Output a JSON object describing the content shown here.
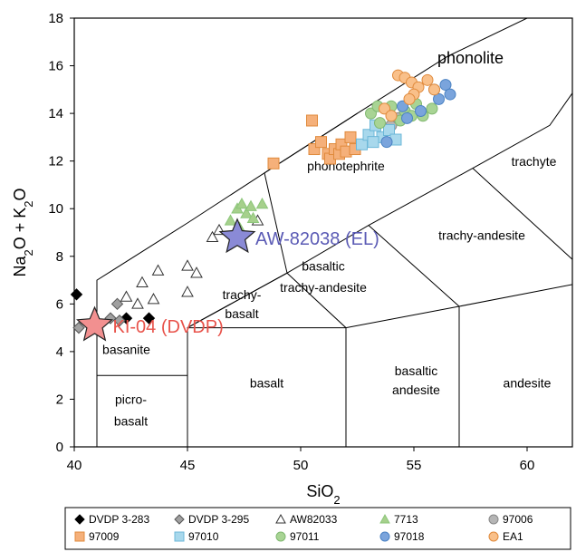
{
  "chart_data": {
    "type": "scatter",
    "xlabel": "SiO2",
    "ylabel": "Na2O + K2O",
    "xlim": [
      40,
      62
    ],
    "ylim": [
      0,
      18
    ],
    "xticks": [
      40,
      45,
      50,
      55,
      60
    ],
    "yticks": [
      0,
      2,
      4,
      6,
      8,
      10,
      12,
      14,
      16,
      18
    ],
    "grid": false,
    "legend_placement": "bottom",
    "fields": [
      {
        "label": "phonolite",
        "x": 57.5,
        "y": 16.1
      },
      {
        "label": "phonotephrite",
        "x": 52.0,
        "y": 11.6
      },
      {
        "label": "trachyte",
        "x": 60.3,
        "y": 11.8
      },
      {
        "label": "trachy-andesite",
        "x": 58.0,
        "y": 8.7
      },
      {
        "label": "basaltic",
        "x": 51.0,
        "y": 7.4
      },
      {
        "label": "trachy-andesite",
        "x": 51.0,
        "y": 6.5
      },
      {
        "label": "trachy-",
        "x": 47.4,
        "y": 6.2
      },
      {
        "label": "basalt",
        "x": 47.4,
        "y": 5.4
      },
      {
        "label": "basanite",
        "x": 42.3,
        "y": 3.9
      },
      {
        "label": "basalt",
        "x": 48.5,
        "y": 2.5
      },
      {
        "label": "basaltic",
        "x": 55.1,
        "y": 3.0
      },
      {
        "label": "andesite",
        "x": 55.1,
        "y": 2.2
      },
      {
        "label": "andesite",
        "x": 60.0,
        "y": 2.5
      },
      {
        "label": "picro-",
        "x": 42.5,
        "y": 1.8
      },
      {
        "label": "basalt",
        "x": 42.5,
        "y": 0.9
      }
    ],
    "annotations": [
      {
        "label": "AW-82038 (EL)",
        "x": 47.2,
        "y": 8.8,
        "color": "#5b5bb5"
      },
      {
        "label": "KI-04 (DVDP)",
        "x": 40.9,
        "y": 5.1,
        "color": "#e8534b"
      }
    ],
    "series": [
      {
        "name": "DVDP 3-283",
        "marker": "diamond",
        "color": "#000000",
        "fill": "#000000",
        "points": [
          [
            40.1,
            6.4
          ],
          [
            42.3,
            5.4
          ],
          [
            43.3,
            5.4
          ]
        ]
      },
      {
        "name": "DVDP 3-295",
        "marker": "diamond",
        "color": "#555555",
        "fill": "#a0a0a0",
        "points": [
          [
            40.2,
            5.0
          ],
          [
            41.6,
            5.4
          ],
          [
            41.9,
            6.0
          ],
          [
            42.0,
            5.3
          ]
        ]
      },
      {
        "name": "AW82033",
        "marker": "triangle-open",
        "color": "#333333",
        "fill": "#ffffff",
        "points": [
          [
            42.3,
            6.3
          ],
          [
            42.8,
            6.0
          ],
          [
            43.0,
            6.9
          ],
          [
            43.5,
            6.2
          ],
          [
            43.7,
            7.4
          ],
          [
            45.0,
            7.6
          ],
          [
            45.0,
            6.5
          ],
          [
            45.4,
            7.3
          ],
          [
            46.1,
            8.8
          ],
          [
            46.4,
            9.1
          ],
          [
            48.1,
            9.5
          ]
        ]
      },
      {
        "name": "7713",
        "marker": "triangle",
        "color": "#8cc67a",
        "fill": "#a6d08c",
        "points": [
          [
            46.9,
            9.5
          ],
          [
            47.2,
            10.0
          ],
          [
            47.4,
            10.2
          ],
          [
            47.6,
            9.8
          ],
          [
            47.8,
            10.1
          ],
          [
            47.3,
            9.2
          ],
          [
            47.9,
            9.6
          ],
          [
            48.3,
            10.2
          ]
        ]
      },
      {
        "name": "97006",
        "marker": "circle",
        "color": "#888888",
        "fill": "#b5b5b5",
        "points": [
          [
            54.0,
            13.5
          ],
          [
            54.3,
            13.8
          ]
        ]
      },
      {
        "name": "97009",
        "marker": "square",
        "color": "#e08a3c",
        "fill": "#f5b07a",
        "points": [
          [
            50.5,
            13.7
          ],
          [
            50.6,
            12.5
          ],
          [
            50.9,
            12.8
          ],
          [
            51.2,
            12.3
          ],
          [
            51.3,
            12.1
          ],
          [
            51.5,
            12.5
          ],
          [
            51.7,
            12.3
          ],
          [
            51.8,
            12.7
          ],
          [
            52.0,
            12.4
          ],
          [
            52.2,
            13.0
          ],
          [
            52.4,
            12.5
          ],
          [
            48.8,
            11.9
          ]
        ]
      },
      {
        "name": "97010",
        "marker": "square",
        "color": "#6cb7d8",
        "fill": "#a8d8ec",
        "points": [
          [
            52.7,
            12.7
          ],
          [
            53.0,
            13.1
          ],
          [
            53.3,
            13.5
          ],
          [
            53.6,
            13.0
          ],
          [
            53.9,
            13.3
          ],
          [
            54.2,
            12.9
          ],
          [
            53.2,
            12.8
          ]
        ]
      },
      {
        "name": "97011",
        "marker": "circle",
        "color": "#80b870",
        "fill": "#a8d494",
        "points": [
          [
            53.1,
            14.0
          ],
          [
            53.5,
            13.6
          ],
          [
            54.0,
            14.3
          ],
          [
            54.4,
            13.7
          ],
          [
            54.6,
            14.1
          ],
          [
            55.1,
            14.4
          ],
          [
            55.4,
            13.9
          ],
          [
            55.8,
            14.2
          ],
          [
            53.4,
            14.3
          ],
          [
            54.9,
            13.9
          ]
        ]
      },
      {
        "name": "97018",
        "marker": "circle",
        "color": "#4a82c3",
        "fill": "#7aa4dc",
        "points": [
          [
            55.9,
            15.0
          ],
          [
            56.1,
            14.6
          ],
          [
            56.4,
            15.2
          ],
          [
            56.6,
            14.8
          ],
          [
            54.5,
            14.3
          ],
          [
            55.3,
            14.1
          ],
          [
            54.7,
            13.8
          ],
          [
            53.8,
            12.8
          ]
        ]
      },
      {
        "name": "EA1",
        "marker": "circle",
        "color": "#e08a3c",
        "fill": "#f9c08a",
        "points": [
          [
            54.3,
            15.6
          ],
          [
            54.6,
            15.5
          ],
          [
            54.9,
            15.3
          ],
          [
            55.2,
            15.1
          ],
          [
            55.6,
            15.4
          ],
          [
            55.0,
            14.8
          ],
          [
            54.8,
            14.6
          ],
          [
            53.7,
            14.2
          ],
          [
            55.9,
            15.0
          ],
          [
            54.0,
            13.9
          ]
        ]
      }
    ]
  }
}
